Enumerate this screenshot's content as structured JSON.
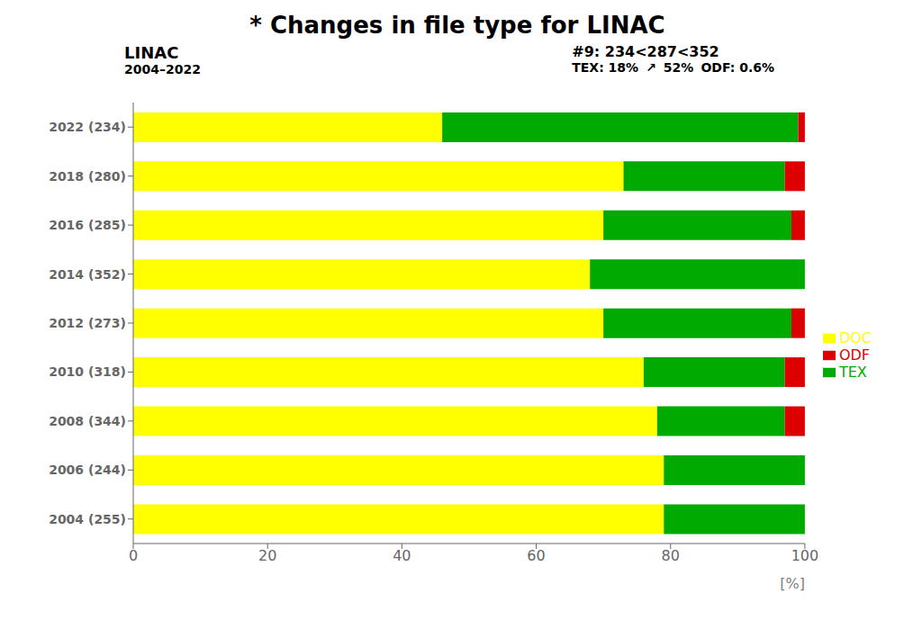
{
  "chart_data": {
    "type": "bar",
    "orientation": "horizontal",
    "stacked": true,
    "title": "* Changes in file type for LINAC",
    "annotations": [
      "LINAC",
      "2004–2022",
      "#9: 234<287<352",
      "TEX: 18%",
      "↗",
      "52%",
      "ODF: 0.6%"
    ],
    "xlabel": "[%]",
    "categories": [
      "2022 (234)",
      "2018 (280)",
      "2016 (285)",
      "2014 (352)",
      "2012 (273)",
      "2010 (318)",
      "2008 (344)",
      "2006 (244)",
      "2004 (255)"
    ],
    "series": [
      {
        "name": "DOC",
        "color": "#ffff00",
        "values": [
          46,
          73,
          70,
          68,
          70,
          76,
          78,
          79,
          79
        ]
      },
      {
        "name": "TEX",
        "color": "#00aa00",
        "values": [
          53,
          24,
          28,
          32,
          28,
          21,
          19,
          21,
          21
        ]
      },
      {
        "name": "ODF",
        "color": "#dd0000",
        "values": [
          1,
          3,
          2,
          0,
          2,
          3,
          3,
          0,
          0
        ]
      }
    ],
    "xlim": [
      0,
      100
    ],
    "xticks": [
      0,
      20,
      40,
      60,
      80,
      100
    ],
    "grid": false,
    "legend": "right"
  }
}
